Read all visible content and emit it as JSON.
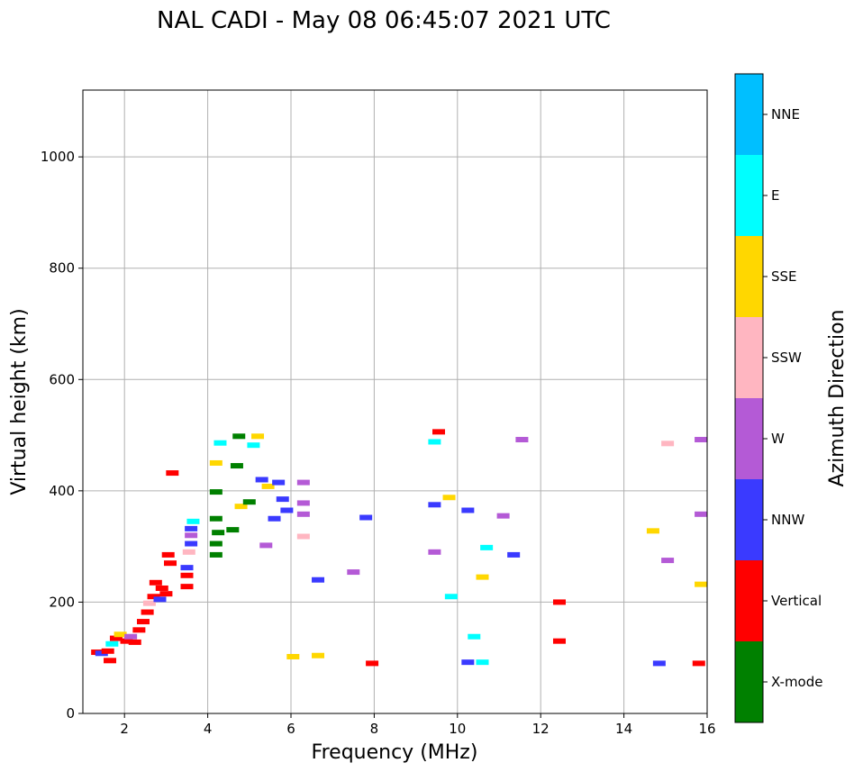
{
  "chart_data": {
    "type": "scatter",
    "title": "NAL CADI - May 08 06:45:07 2021 UTC",
    "xlabel": "Frequency (MHz)",
    "ylabel": "Virtual height (km)",
    "xlim": [
      1,
      16
    ],
    "ylim": [
      0,
      1120
    ],
    "xticks": [
      2,
      4,
      6,
      8,
      10,
      12,
      14,
      16
    ],
    "yticks": [
      0,
      200,
      400,
      600,
      800,
      1000
    ],
    "xtick_labels": [
      "2",
      "4",
      "6",
      "8",
      "10",
      "12",
      "14",
      "16"
    ],
    "ytick_labels": [
      "0",
      "200",
      "400",
      "600",
      "800",
      "1000"
    ],
    "grid": true,
    "colorbar": {
      "label": "Azimuth Direction",
      "categories": [
        "X-mode",
        "Vertical",
        "NNW",
        "W",
        "SSW",
        "SSE",
        "E",
        "NNE"
      ],
      "colors": [
        "#008000",
        "#ff0000",
        "#3a3aff",
        "#b45ad6",
        "#ffb6c1",
        "#ffd700",
        "#00ffff",
        "#00bfff"
      ]
    },
    "echoes": [
      {
        "f": 1.35,
        "h": 110,
        "c": "Vertical"
      },
      {
        "f": 1.45,
        "h": 108,
        "c": "NNW"
      },
      {
        "f": 1.6,
        "h": 112,
        "c": "Vertical"
      },
      {
        "f": 1.7,
        "h": 125,
        "c": "E"
      },
      {
        "f": 1.65,
        "h": 95,
        "c": "Vertical"
      },
      {
        "f": 1.8,
        "h": 135,
        "c": "Vertical"
      },
      {
        "f": 1.9,
        "h": 142,
        "c": "SSE"
      },
      {
        "f": 2.05,
        "h": 130,
        "c": "Vertical"
      },
      {
        "f": 2.15,
        "h": 138,
        "c": "W"
      },
      {
        "f": 2.25,
        "h": 128,
        "c": "Vertical"
      },
      {
        "f": 2.35,
        "h": 150,
        "c": "Vertical"
      },
      {
        "f": 2.45,
        "h": 165,
        "c": "Vertical"
      },
      {
        "f": 2.55,
        "h": 182,
        "c": "Vertical"
      },
      {
        "f": 2.6,
        "h": 198,
        "c": "SSW"
      },
      {
        "f": 2.7,
        "h": 210,
        "c": "Vertical"
      },
      {
        "f": 2.75,
        "h": 235,
        "c": "Vertical"
      },
      {
        "f": 2.85,
        "h": 205,
        "c": "NNW"
      },
      {
        "f": 2.9,
        "h": 225,
        "c": "Vertical"
      },
      {
        "f": 3.0,
        "h": 215,
        "c": "Vertical"
      },
      {
        "f": 3.1,
        "h": 270,
        "c": "Vertical"
      },
      {
        "f": 3.05,
        "h": 285,
        "c": "Vertical"
      },
      {
        "f": 3.15,
        "h": 432,
        "c": "Vertical"
      },
      {
        "f": 3.5,
        "h": 228,
        "c": "Vertical"
      },
      {
        "f": 3.5,
        "h": 248,
        "c": "Vertical"
      },
      {
        "f": 3.5,
        "h": 262,
        "c": "NNW"
      },
      {
        "f": 3.55,
        "h": 290,
        "c": "SSW"
      },
      {
        "f": 3.6,
        "h": 305,
        "c": "NNW"
      },
      {
        "f": 3.6,
        "h": 320,
        "c": "W"
      },
      {
        "f": 3.6,
        "h": 332,
        "c": "NNW"
      },
      {
        "f": 3.65,
        "h": 345,
        "c": "E"
      },
      {
        "f": 4.2,
        "h": 285,
        "c": "X-mode"
      },
      {
        "f": 4.2,
        "h": 305,
        "c": "X-mode"
      },
      {
        "f": 4.25,
        "h": 325,
        "c": "X-mode"
      },
      {
        "f": 4.2,
        "h": 350,
        "c": "X-mode"
      },
      {
        "f": 4.2,
        "h": 398,
        "c": "X-mode"
      },
      {
        "f": 4.2,
        "h": 450,
        "c": "SSE"
      },
      {
        "f": 4.3,
        "h": 486,
        "c": "E"
      },
      {
        "f": 4.6,
        "h": 330,
        "c": "X-mode"
      },
      {
        "f": 4.7,
        "h": 445,
        "c": "X-mode"
      },
      {
        "f": 4.75,
        "h": 498,
        "c": "X-mode"
      },
      {
        "f": 4.8,
        "h": 372,
        "c": "SSE"
      },
      {
        "f": 5.0,
        "h": 380,
        "c": "X-mode"
      },
      {
        "f": 5.1,
        "h": 482,
        "c": "E"
      },
      {
        "f": 5.2,
        "h": 498,
        "c": "SSE"
      },
      {
        "f": 5.3,
        "h": 420,
        "c": "NNW"
      },
      {
        "f": 5.4,
        "h": 302,
        "c": "W"
      },
      {
        "f": 5.45,
        "h": 408,
        "c": "SSE"
      },
      {
        "f": 5.6,
        "h": 350,
        "c": "NNW"
      },
      {
        "f": 5.7,
        "h": 415,
        "c": "NNW"
      },
      {
        "f": 5.8,
        "h": 385,
        "c": "NNW"
      },
      {
        "f": 5.9,
        "h": 365,
        "c": "NNW"
      },
      {
        "f": 6.3,
        "h": 378,
        "c": "W"
      },
      {
        "f": 6.3,
        "h": 415,
        "c": "W"
      },
      {
        "f": 6.3,
        "h": 358,
        "c": "W"
      },
      {
        "f": 6.3,
        "h": 318,
        "c": "SSW"
      },
      {
        "f": 6.05,
        "h": 102,
        "c": "SSE"
      },
      {
        "f": 6.65,
        "h": 104,
        "c": "SSE"
      },
      {
        "f": 6.65,
        "h": 240,
        "c": "NNW"
      },
      {
        "f": 7.5,
        "h": 254,
        "c": "W"
      },
      {
        "f": 7.8,
        "h": 352,
        "c": "NNW"
      },
      {
        "f": 7.95,
        "h": 90,
        "c": "Vertical"
      },
      {
        "f": 9.45,
        "h": 488,
        "c": "E"
      },
      {
        "f": 9.55,
        "h": 506,
        "c": "Vertical"
      },
      {
        "f": 9.45,
        "h": 375,
        "c": "NNW"
      },
      {
        "f": 9.45,
        "h": 290,
        "c": "W"
      },
      {
        "f": 9.8,
        "h": 388,
        "c": "SSE"
      },
      {
        "f": 9.85,
        "h": 210,
        "c": "E"
      },
      {
        "f": 10.25,
        "h": 365,
        "c": "NNW"
      },
      {
        "f": 10.4,
        "h": 138,
        "c": "E"
      },
      {
        "f": 10.25,
        "h": 92,
        "c": "NNW"
      },
      {
        "f": 10.6,
        "h": 92,
        "c": "E"
      },
      {
        "f": 10.7,
        "h": 298,
        "c": "E"
      },
      {
        "f": 10.6,
        "h": 245,
        "c": "SSE"
      },
      {
        "f": 11.1,
        "h": 355,
        "c": "W"
      },
      {
        "f": 11.35,
        "h": 285,
        "c": "NNW"
      },
      {
        "f": 11.55,
        "h": 492,
        "c": "W"
      },
      {
        "f": 12.45,
        "h": 200,
        "c": "Vertical"
      },
      {
        "f": 12.45,
        "h": 130,
        "c": "Vertical"
      },
      {
        "f": 14.7,
        "h": 328,
        "c": "SSE"
      },
      {
        "f": 15.05,
        "h": 485,
        "c": "SSW"
      },
      {
        "f": 15.05,
        "h": 275,
        "c": "W"
      },
      {
        "f": 14.85,
        "h": 90,
        "c": "NNW"
      },
      {
        "f": 15.85,
        "h": 492,
        "c": "W"
      },
      {
        "f": 15.85,
        "h": 358,
        "c": "W"
      },
      {
        "f": 15.85,
        "h": 232,
        "c": "SSE"
      },
      {
        "f": 15.8,
        "h": 90,
        "c": "Vertical"
      }
    ]
  }
}
